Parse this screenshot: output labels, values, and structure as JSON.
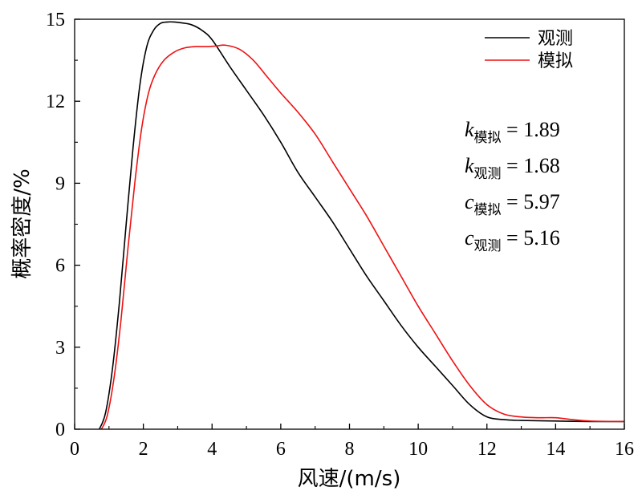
{
  "chart_data": {
    "type": "line",
    "title": "",
    "xlabel": "风速/(m/s)",
    "ylabel": "概率密度/%",
    "xlim": [
      0,
      16
    ],
    "ylim": [
      0,
      15
    ],
    "xticks": [
      0,
      2,
      4,
      6,
      8,
      10,
      12,
      14,
      16
    ],
    "yticks": [
      0,
      3,
      6,
      9,
      12,
      15
    ],
    "grid": false,
    "legend_position": "top-right",
    "series": [
      {
        "name": "观测",
        "color": "#000000",
        "x": [
          0.72,
          0.9,
          1.1,
          1.3,
          1.5,
          1.7,
          1.9,
          2.1,
          2.3,
          2.5,
          2.7,
          2.9,
          3.1,
          3.4,
          3.7,
          4.0,
          4.5,
          5.0,
          5.5,
          6.0,
          6.5,
          7.0,
          7.5,
          8.0,
          8.5,
          9.0,
          9.5,
          10.0,
          10.5,
          11.0,
          11.5,
          12.0,
          12.5,
          13.0,
          14.0,
          15.0,
          16.0
        ],
        "y": [
          0.0,
          0.6,
          2.2,
          4.6,
          7.5,
          10.3,
          12.6,
          14.0,
          14.6,
          14.85,
          14.9,
          14.9,
          14.87,
          14.8,
          14.6,
          14.25,
          13.3,
          12.4,
          11.5,
          10.5,
          9.4,
          8.5,
          7.6,
          6.6,
          5.6,
          4.7,
          3.8,
          3.0,
          2.3,
          1.6,
          0.9,
          0.45,
          0.35,
          0.32,
          0.3,
          0.28,
          0.28
        ]
      },
      {
        "name": "模拟",
        "color": "#ee1111",
        "x": [
          0.78,
          0.95,
          1.15,
          1.35,
          1.55,
          1.75,
          1.95,
          2.15,
          2.35,
          2.6,
          2.9,
          3.2,
          3.5,
          3.8,
          4.1,
          4.4,
          4.8,
          5.2,
          5.6,
          6.0,
          6.5,
          7.0,
          7.5,
          8.0,
          8.5,
          9.0,
          9.5,
          10.0,
          10.5,
          11.0,
          11.5,
          12.0,
          12.5,
          13.0,
          13.5,
          14.0,
          14.5,
          15.0,
          16.0
        ],
        "y": [
          0.0,
          0.5,
          1.9,
          4.0,
          6.6,
          9.0,
          11.0,
          12.3,
          13.0,
          13.5,
          13.8,
          13.95,
          14.0,
          14.0,
          14.02,
          14.05,
          13.9,
          13.5,
          12.9,
          12.3,
          11.6,
          10.8,
          9.8,
          8.8,
          7.8,
          6.7,
          5.6,
          4.5,
          3.5,
          2.5,
          1.6,
          0.9,
          0.55,
          0.45,
          0.42,
          0.42,
          0.35,
          0.3,
          0.28
        ]
      }
    ],
    "annotations": [
      {
        "var": "k",
        "sub": "模拟",
        "text": " = 1.89"
      },
      {
        "var": "k",
        "sub": "观测",
        "text": " = 1.68"
      },
      {
        "var": "c",
        "sub": "模拟",
        "text": " = 5.97"
      },
      {
        "var": "c",
        "sub": "观测",
        "text": " = 5.16"
      }
    ]
  }
}
